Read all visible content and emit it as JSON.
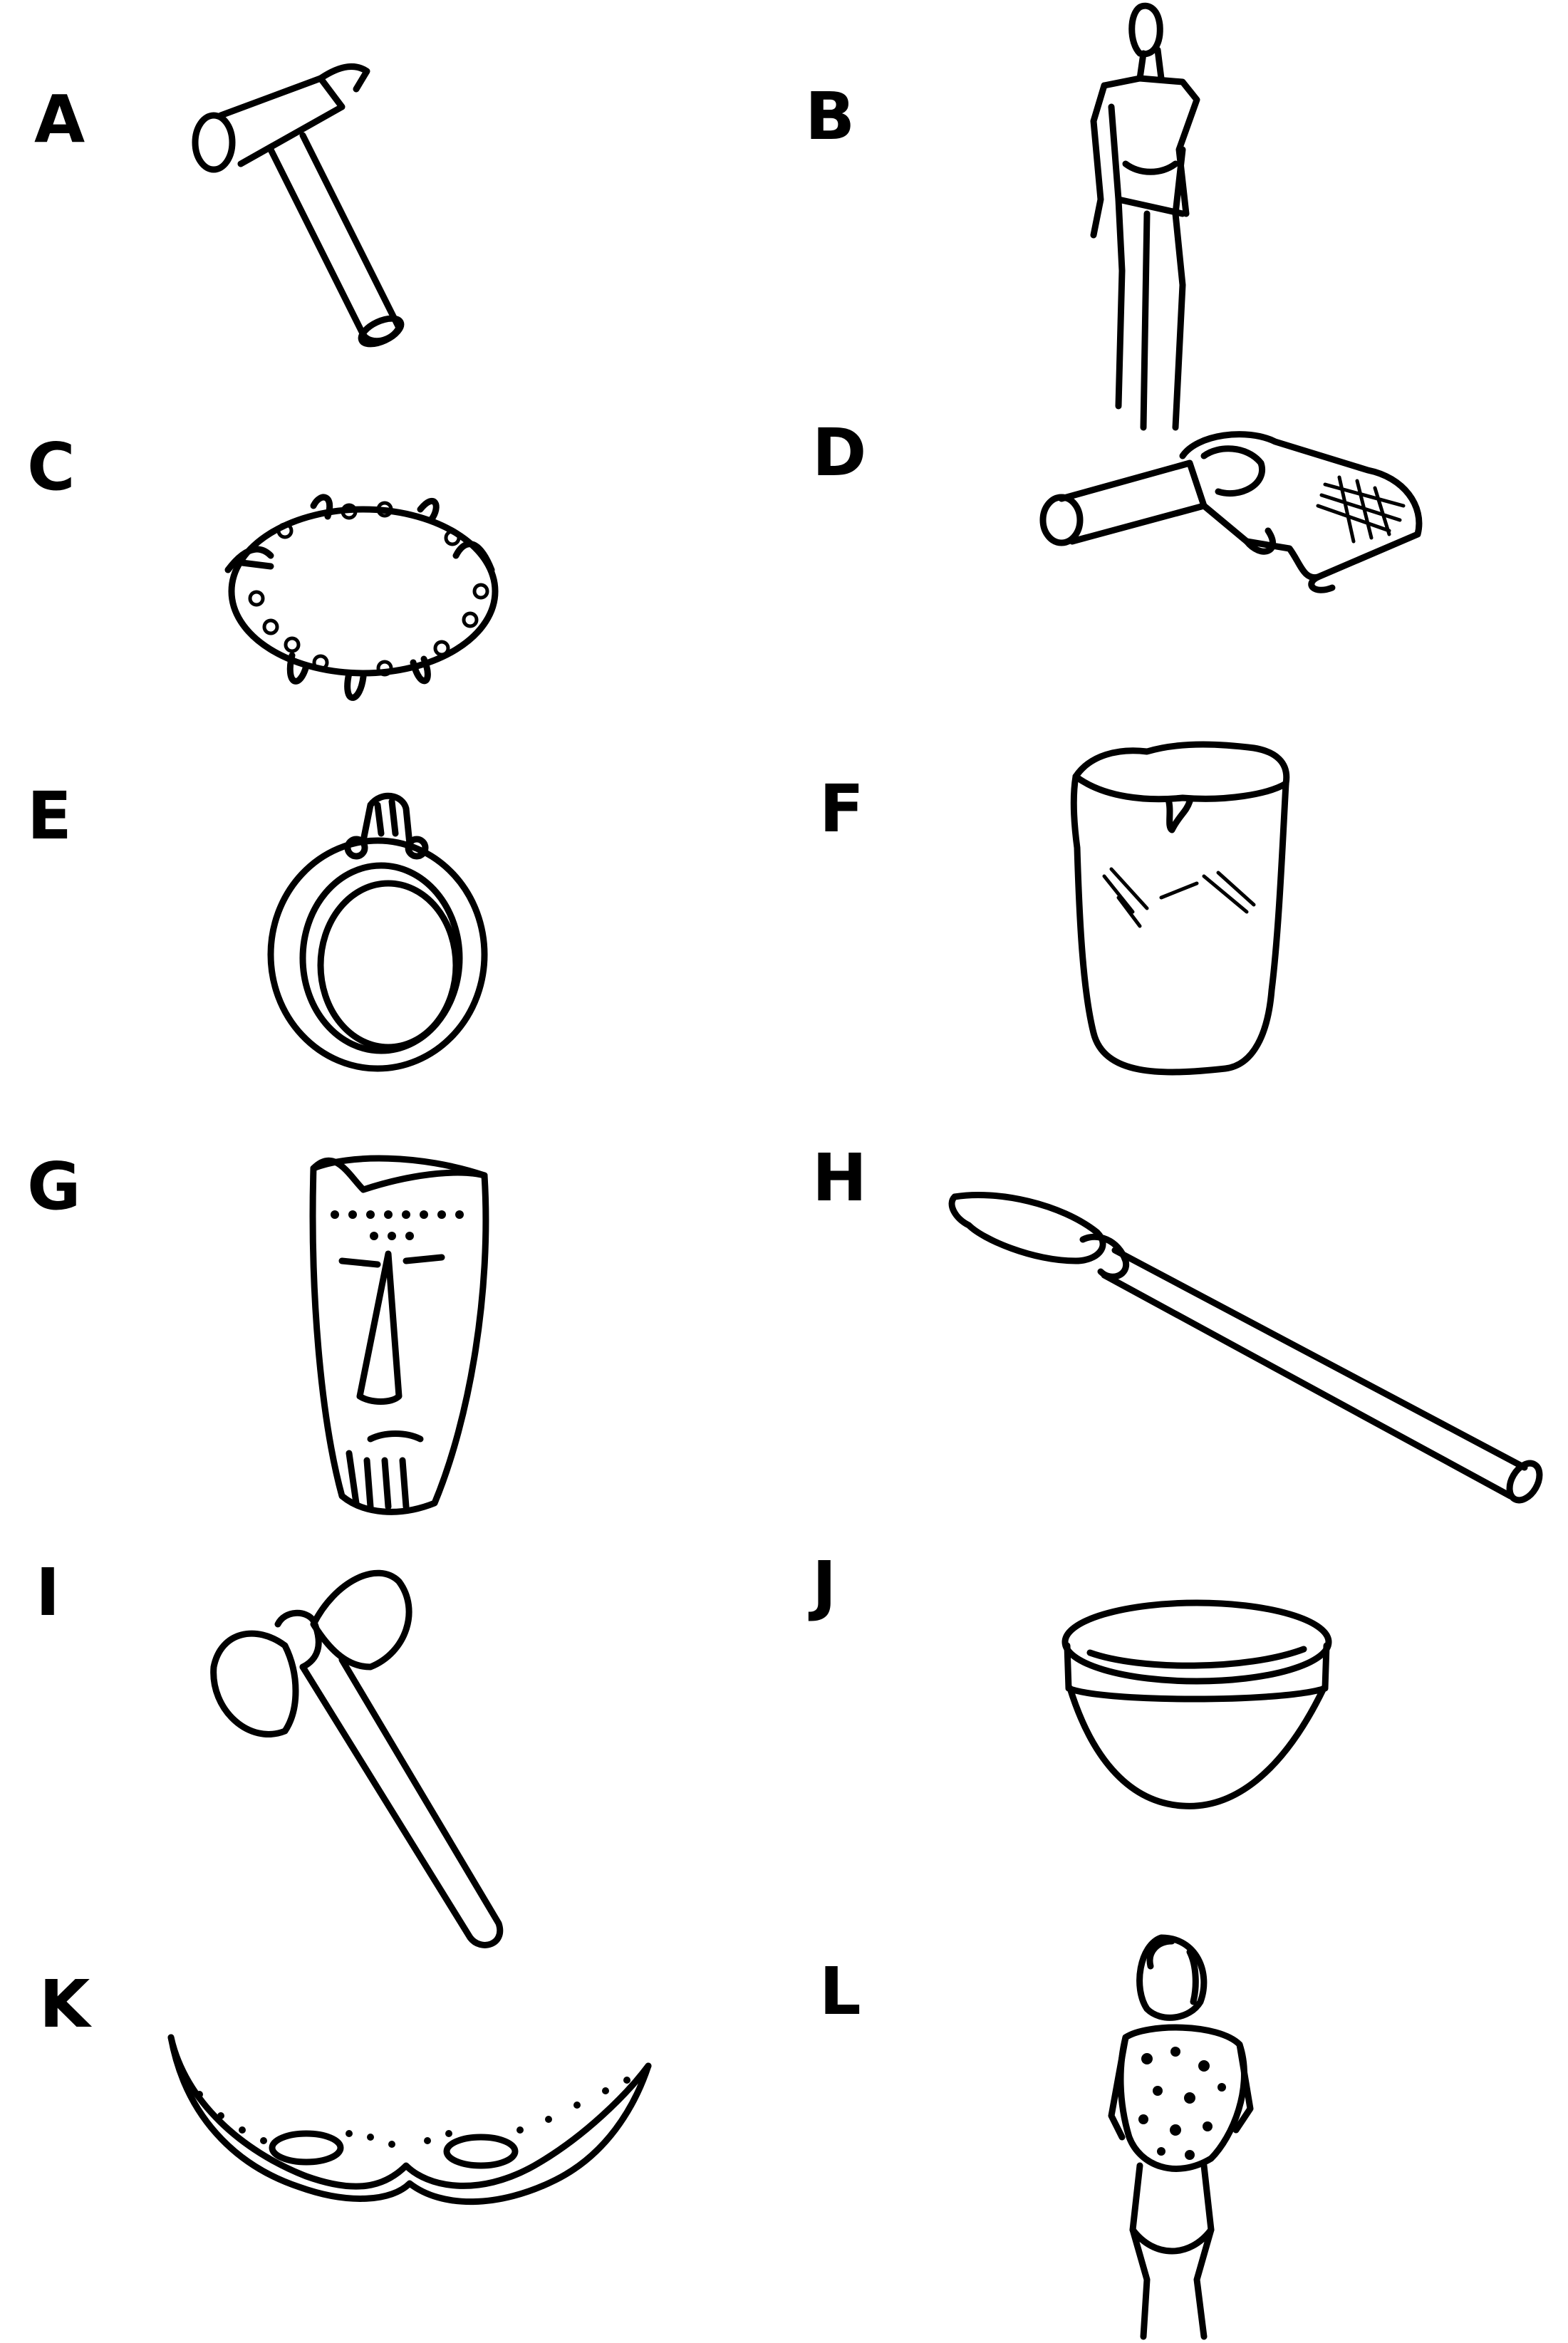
{
  "items": [
    {
      "letter": "A",
      "object": "hammer-icon"
    },
    {
      "letter": "B",
      "object": "modern-person-icon"
    },
    {
      "letter": "C",
      "object": "tooth-necklace-icon"
    },
    {
      "letter": "D",
      "object": "revolver-icon"
    },
    {
      "letter": "E",
      "object": "ring-icon"
    },
    {
      "letter": "F",
      "object": "drum-icon"
    },
    {
      "letter": "G",
      "object": "tribal-mask-icon"
    },
    {
      "letter": "H",
      "object": "stone-spear-icon"
    },
    {
      "letter": "I",
      "object": "stone-axe-icon"
    },
    {
      "letter": "J",
      "object": "bowl-icon"
    },
    {
      "letter": "K",
      "object": "eye-mask-icon"
    },
    {
      "letter": "L",
      "object": "caveman-icon"
    }
  ]
}
